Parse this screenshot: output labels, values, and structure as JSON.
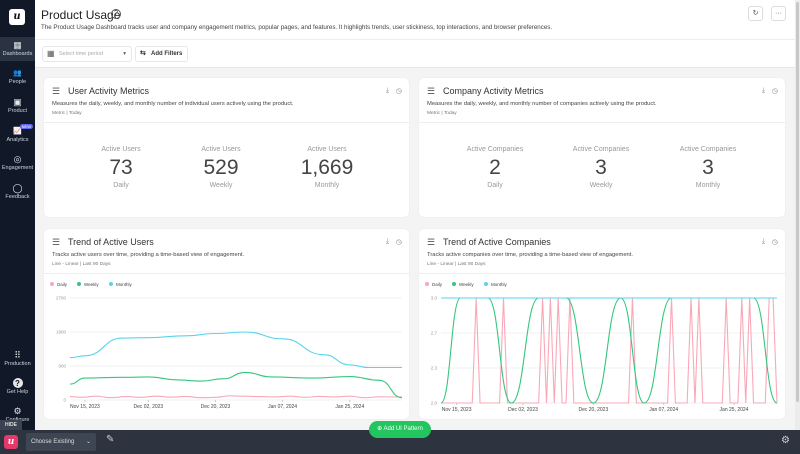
{
  "sidebar": {
    "logo": "u",
    "items": [
      {
        "label": "Dashboards",
        "icon": "dashboard-icon",
        "glyph": "▦"
      },
      {
        "label": "People",
        "icon": "people-icon",
        "glyph": "👥"
      },
      {
        "label": "Product",
        "icon": "product-icon",
        "glyph": "▣"
      },
      {
        "label": "Analytics",
        "icon": "analytics-icon",
        "glyph": "📈",
        "badge": "NEW"
      },
      {
        "label": "Engagement",
        "icon": "engagement-icon",
        "glyph": "◎"
      },
      {
        "label": "Feedback",
        "icon": "feedback-icon",
        "glyph": "◯"
      }
    ],
    "bottom": [
      {
        "label": "Production",
        "glyph": "⠿"
      },
      {
        "label": "Get Help",
        "glyph": "?"
      },
      {
        "label": "Configure",
        "glyph": "⚙"
      }
    ]
  },
  "header": {
    "title": "Product Usage",
    "help": "?",
    "description": "The Product Usage Dashboard tracks user and company engagement metrics, popular pages, and features. It highlights trends, user stickiness, top interactions, and browser preferences.",
    "refresh": "↻",
    "more": "···"
  },
  "filters": {
    "time_placeholder": "Select time period",
    "add_filters": "Add Filters"
  },
  "cards": {
    "user_metrics": {
      "title": "User Activity Metrics",
      "description": "Measures the daily, weekly, and monthly number of individual users actively using the product.",
      "meta": "Metric | Today",
      "metrics": [
        {
          "label": "Active Users",
          "value": "73",
          "period": "Daily"
        },
        {
          "label": "Active Users",
          "value": "529",
          "period": "Weekly"
        },
        {
          "label": "Active Users",
          "value": "1,669",
          "period": "Monthly"
        }
      ]
    },
    "company_metrics": {
      "title": "Company Activity Metrics",
      "description": "Measures the daily, weekly, and monthly number of companies actively using the product.",
      "meta": "Metric | Today",
      "metrics": [
        {
          "label": "Active Companies",
          "value": "2",
          "period": "Daily"
        },
        {
          "label": "Active Companies",
          "value": "3",
          "period": "Weekly"
        },
        {
          "label": "Active Companies",
          "value": "3",
          "period": "Monthly"
        }
      ]
    },
    "user_trend": {
      "title": "Trend of Active Users",
      "description": "Tracks active users over time, providing a time-based view of engagement.",
      "meta": "Line - Linear | Last 90 Days"
    },
    "company_trend": {
      "title": "Trend of Active Companies",
      "description": "Tracks active companies over time, providing a time-based view of engagement.",
      "meta": "Line - Linear | Last 90 Days"
    }
  },
  "chart_data": [
    {
      "type": "line",
      "xlim": [
        "2023-11-11",
        "2024-02-08"
      ],
      "ylim": [
        0,
        2700
      ],
      "yticks": [
        "0",
        "900",
        "1800",
        "2700"
      ],
      "xticks": [
        {
          "date": "2023-11-15",
          "label": "Nov 15, 2023"
        },
        {
          "date": "2023-12-02",
          "label": "Dec 02, 2023"
        },
        {
          "date": "2023-12-20",
          "label": "Dec 20, 2023"
        },
        {
          "date": "2024-01-07",
          "label": "Jan 07, 2024"
        },
        {
          "date": "2024-01-25",
          "label": "Jan 25, 2024"
        }
      ],
      "grid": true,
      "legend": "top-left",
      "series": [
        {
          "name": "Daily",
          "color": "#f9a8b8",
          "x": [
            "2023-11-11",
            "2023-11-14",
            "2023-11-18",
            "2023-11-22",
            "2023-11-26",
            "2023-11-30",
            "2023-12-04",
            "2023-12-08",
            "2023-12-12",
            "2023-12-16",
            "2023-12-20",
            "2023-12-24",
            "2023-12-28",
            "2024-01-01",
            "2024-01-05",
            "2024-01-09",
            "2024-01-13",
            "2024-01-17",
            "2024-01-21",
            "2024-01-25",
            "2024-01-29",
            "2024-02-02",
            "2024-02-08"
          ],
          "values": [
            90,
            70,
            100,
            60,
            90,
            70,
            100,
            75,
            95,
            60,
            70,
            110,
            100,
            90,
            80,
            100,
            70,
            95,
            80,
            100,
            60,
            85,
            80
          ]
        },
        {
          "name": "Weekly",
          "color": "#34c77b",
          "x": [
            "2023-11-11",
            "2023-11-15",
            "2023-11-25",
            "2023-12-02",
            "2023-12-10",
            "2023-12-16",
            "2023-12-22",
            "2023-12-28",
            "2024-01-04",
            "2024-01-15",
            "2024-01-25",
            "2024-02-02",
            "2024-02-08"
          ],
          "values": [
            420,
            580,
            600,
            610,
            530,
            500,
            560,
            730,
            610,
            580,
            620,
            520,
            60
          ]
        },
        {
          "name": "Monthly",
          "color": "#56d4ec",
          "x": [
            "2023-11-11",
            "2023-11-15",
            "2023-11-25",
            "2023-12-02",
            "2023-12-12",
            "2023-12-20",
            "2023-12-28",
            "2024-01-07",
            "2024-01-18",
            "2024-01-25",
            "2024-01-30",
            "2024-02-08"
          ],
          "values": [
            1120,
            1170,
            1640,
            1650,
            1700,
            1760,
            1800,
            1620,
            1200,
            930,
            860,
            860
          ]
        }
      ]
    },
    {
      "type": "line",
      "xlim": [
        "2023-11-11",
        "2024-02-05"
      ],
      "ylim": [
        2,
        3
      ],
      "yticks": [
        "2.0",
        "2.3",
        "2.7",
        "3.0"
      ],
      "xticks": [
        {
          "date": "2023-11-15",
          "label": "Nov 15, 2023"
        },
        {
          "date": "2023-12-02",
          "label": "Dec 02, 2023"
        },
        {
          "date": "2023-12-20",
          "label": "Dec 20, 2023"
        },
        {
          "date": "2024-01-07",
          "label": "Jan 07, 2024"
        },
        {
          "date": "2024-01-25",
          "label": "Jan 25, 2024"
        }
      ],
      "grid": true,
      "legend": "top-left",
      "series": [
        {
          "name": "Daily",
          "color": "#f9a8b8",
          "x": [
            "2023-11-11",
            "2023-11-19",
            "2023-11-20",
            "2023-11-21",
            "2023-11-26",
            "2023-11-27",
            "2023-11-28",
            "2023-12-06",
            "2023-12-07",
            "2023-12-08",
            "2023-12-09",
            "2023-12-10",
            "2023-12-11",
            "2023-12-12",
            "2023-12-13",
            "2023-12-14",
            "2023-12-15",
            "2023-12-29",
            "2023-12-30",
            "2023-12-31",
            "2024-01-08",
            "2024-01-09",
            "2024-01-10",
            "2024-01-13",
            "2024-01-14",
            "2024-01-15",
            "2024-01-16",
            "2024-01-17",
            "2024-01-22",
            "2024-01-23",
            "2024-01-24",
            "2024-01-26",
            "2024-01-27",
            "2024-01-28",
            "2024-01-29",
            "2024-01-30",
            "2024-02-02",
            "2024-02-03",
            "2024-02-04",
            "2024-02-05"
          ],
          "values": [
            2,
            2,
            3,
            2,
            2,
            3,
            2,
            2,
            3,
            2,
            3,
            2,
            3,
            2,
            2,
            3,
            2,
            2,
            3,
            2,
            2,
            3,
            2,
            2,
            3,
            2,
            3,
            2,
            2,
            3,
            2,
            2,
            3,
            2,
            3,
            2,
            2,
            3,
            3,
            2
          ]
        },
        {
          "name": "Weekly",
          "color": "#34c77b",
          "x": [
            "2023-11-11",
            "2023-11-16",
            "2023-11-23",
            "2023-11-29",
            "2023-12-06",
            "2023-12-13",
            "2023-12-20",
            "2023-12-27",
            "2024-01-02",
            "2024-01-09",
            "2024-01-30",
            "2024-02-05"
          ],
          "values": [
            2,
            3,
            3,
            2,
            3,
            3,
            2,
            3,
            2,
            3,
            3,
            2
          ]
        },
        {
          "name": "Monthly",
          "color": "#56d4ec",
          "x": [
            "2023-11-11",
            "2024-02-05"
          ],
          "values": [
            3,
            3
          ]
        }
      ]
    }
  ],
  "bottombar": {
    "hide": "HIDE",
    "logo": "u",
    "choose": "Choose Existing",
    "add_pattern": "⊕ Add UI Pattern"
  }
}
